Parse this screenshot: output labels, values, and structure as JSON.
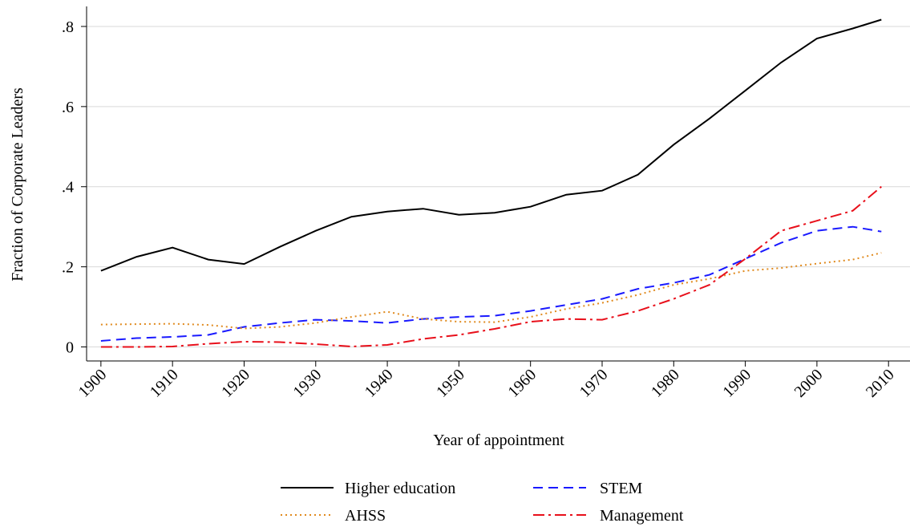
{
  "chart_data": {
    "type": "line",
    "x_label": "Year of appointment",
    "y_label": "Fraction of Corporate Leaders",
    "x": [
      1900,
      1905,
      1910,
      1915,
      1920,
      1925,
      1930,
      1935,
      1940,
      1945,
      1950,
      1955,
      1960,
      1965,
      1970,
      1975,
      1980,
      1985,
      1990,
      1995,
      2000,
      2005,
      2009
    ],
    "series": [
      {
        "name": "Higher education",
        "color": "#000000",
        "dash": "solid",
        "values": [
          0.19,
          0.225,
          0.248,
          0.218,
          0.207,
          0.25,
          0.29,
          0.325,
          0.338,
          0.345,
          0.33,
          0.335,
          0.35,
          0.38,
          0.39,
          0.43,
          0.505,
          0.57,
          0.64,
          0.71,
          0.77,
          0.795,
          0.817
        ]
      },
      {
        "name": "STEM",
        "color": "#1a1aff",
        "dash": "dashed",
        "values": [
          0.015,
          0.022,
          0.025,
          0.03,
          0.05,
          0.06,
          0.068,
          0.065,
          0.06,
          0.07,
          0.075,
          0.078,
          0.09,
          0.105,
          0.12,
          0.145,
          0.16,
          0.18,
          0.22,
          0.26,
          0.29,
          0.3,
          0.288
        ]
      },
      {
        "name": "AHSS",
        "color": "#e08a1e",
        "dash": "dotted",
        "values": [
          0.056,
          0.057,
          0.058,
          0.055,
          0.046,
          0.05,
          0.06,
          0.075,
          0.088,
          0.07,
          0.063,
          0.062,
          0.075,
          0.095,
          0.11,
          0.13,
          0.155,
          0.17,
          0.19,
          0.197,
          0.208,
          0.218,
          0.235
        ]
      },
      {
        "name": "Management",
        "color": "#e8101b",
        "dash": "dashdot",
        "values": [
          0,
          0,
          0.001,
          0.008,
          0.013,
          0.012,
          0.007,
          0.001,
          0.005,
          0.02,
          0.03,
          0.045,
          0.063,
          0.07,
          0.068,
          0.09,
          0.12,
          0.155,
          0.22,
          0.29,
          0.315,
          0.34,
          0.4
        ]
      }
    ],
    "xlim": [
      1898,
      2013
    ],
    "xticks": [
      1900,
      1910,
      1920,
      1930,
      1940,
      1950,
      1960,
      1970,
      1980,
      1990,
      2000,
      2010
    ],
    "ylim": [
      -0.035,
      0.85
    ],
    "yticks": [
      0,
      {
        "value": 0.2,
        "label": ".2"
      },
      {
        "value": 0.4,
        "label": ".4"
      },
      {
        "value": 0.6,
        "label": ".6"
      },
      {
        "value": 0.8,
        "label": ".8"
      }
    ],
    "grid": true
  }
}
